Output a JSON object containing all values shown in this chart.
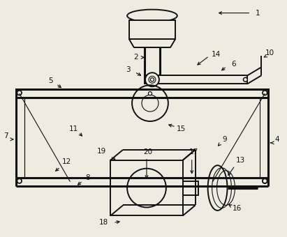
{
  "bg_color": "#f0ebe0",
  "line_color": "#111111",
  "lw_thin": 0.8,
  "lw_med": 1.4,
  "lw_thick": 2.2,
  "figsize": [
    4.11,
    3.4
  ],
  "dpi": 100
}
